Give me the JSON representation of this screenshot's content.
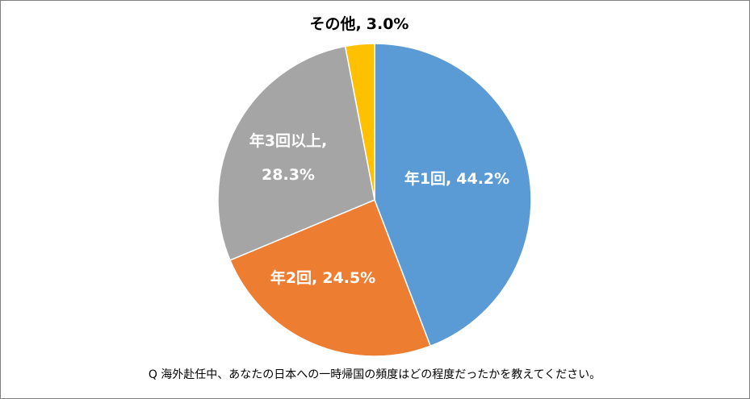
{
  "chart_data": {
    "type": "pie",
    "categories": [
      "年1回",
      "年2回",
      "年3回以上",
      "その他"
    ],
    "values": [
      44.2,
      24.5,
      28.3,
      3.0
    ],
    "value_labels": [
      "44.2%",
      "24.5%",
      "28.3%",
      "3.0%"
    ],
    "label_separator": ",",
    "colors": [
      "#5b9bd5",
      "#ed7d31",
      "#a5a5a5",
      "#ffc000"
    ],
    "caption": "Q 海外赴任中、あなたの日本への一時帰国の頻度はどの程度だったかを教えてください。"
  }
}
